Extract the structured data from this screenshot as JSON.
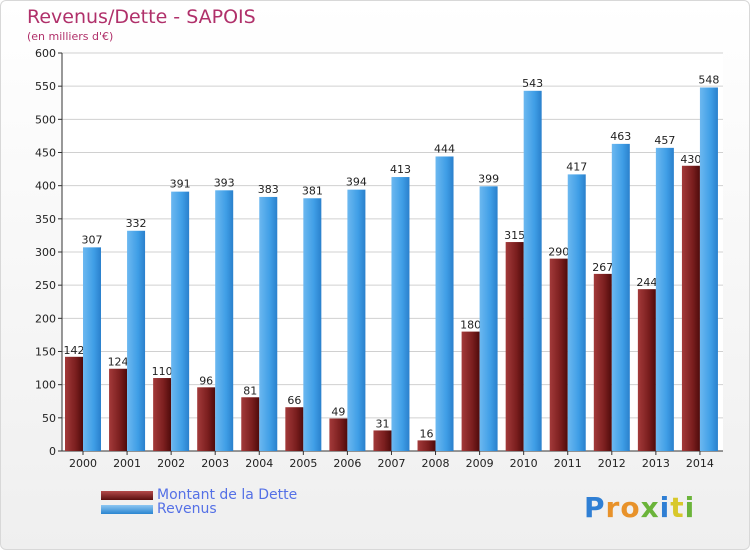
{
  "header": {
    "title": "Revenus/Dette - SAPOIS",
    "subtitle": "(en milliers d'€)"
  },
  "colors": {
    "dette": "#7a1e1e",
    "revenus": "#3f9ee6",
    "axis": "#333333",
    "grid": "#d0d0d0"
  },
  "chart_data": {
    "type": "bar",
    "categories": [
      "2000",
      "2001",
      "2002",
      "2003",
      "2004",
      "2005",
      "2006",
      "2007",
      "2008",
      "2009",
      "2010",
      "2011",
      "2012",
      "2013",
      "2014"
    ],
    "series": [
      {
        "name": "Montant de la Dette",
        "values": [
          142,
          124,
          110,
          96,
          81,
          66,
          49,
          31,
          16,
          180,
          315,
          290,
          267,
          244,
          430
        ]
      },
      {
        "name": "Revenus",
        "values": [
          307,
          332,
          391,
          393,
          383,
          381,
          394,
          413,
          444,
          399,
          543,
          417,
          463,
          457,
          548
        ]
      }
    ],
    "ylim": [
      0,
      600
    ],
    "yticks": [
      0,
      50,
      100,
      150,
      200,
      250,
      300,
      350,
      400,
      450,
      500,
      550,
      600
    ],
    "grid": true,
    "legend": "bottom-left"
  },
  "logo": {
    "letters": [
      "P",
      "r",
      "o",
      "x",
      "i",
      "t",
      "i"
    ]
  }
}
